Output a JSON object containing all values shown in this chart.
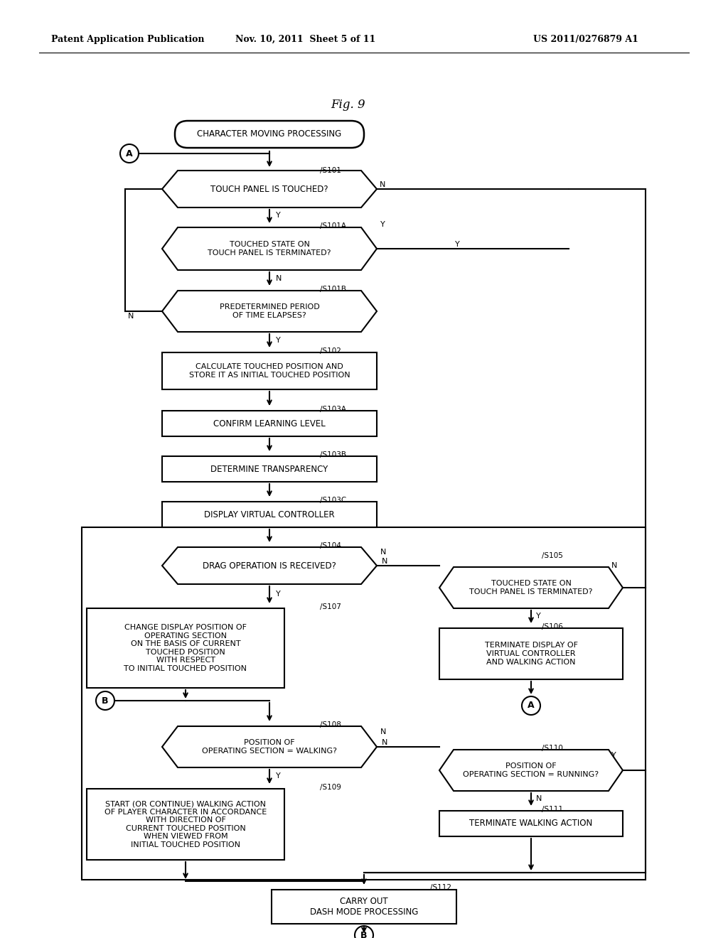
{
  "bg_color": "#ffffff",
  "text_color": "#000000",
  "line_color": "#000000",
  "header_left": "Patent Application Publication",
  "header_mid": "Nov. 10, 2011  Sheet 5 of 11",
  "header_right": "US 2011/0276879 A1",
  "fig_title": "Fig. 9"
}
